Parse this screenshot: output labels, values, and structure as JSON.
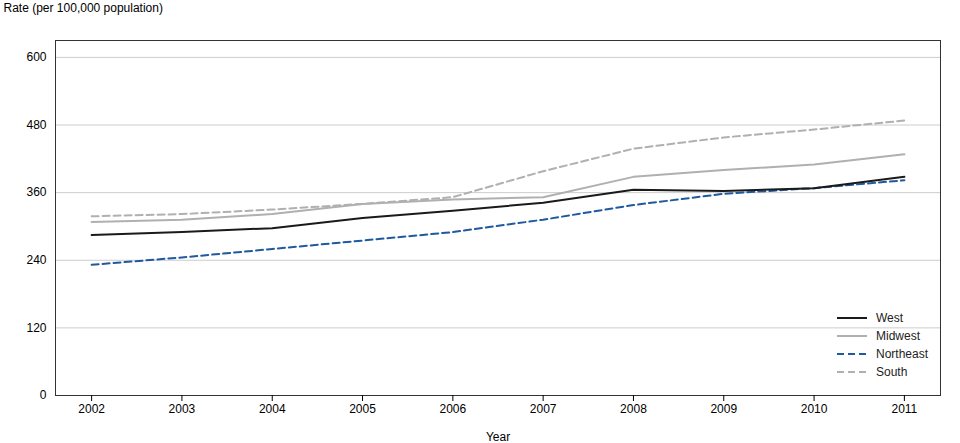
{
  "chart_data": {
    "type": "line",
    "x": [
      2002,
      2003,
      2004,
      2005,
      2006,
      2007,
      2008,
      2009,
      2010,
      2011
    ],
    "xlabel": "Year",
    "ylabel": "Rate (per 100,000 population)",
    "series": [
      {
        "name": "West",
        "color": "#1a1a1a",
        "line_style": "solid",
        "values": [
          285,
          290,
          297,
          315,
          328,
          342,
          365,
          363,
          368,
          388
        ]
      },
      {
        "name": "Midwest",
        "color": "#b0b0b0",
        "line_style": "solid",
        "values": [
          308,
          312,
          322,
          340,
          348,
          352,
          388,
          400,
          410,
          428
        ]
      },
      {
        "name": "Northeast",
        "color": "#1f5a9e",
        "line_style": "dashed",
        "values": [
          232,
          245,
          260,
          275,
          290,
          312,
          338,
          358,
          368,
          382
        ]
      },
      {
        "name": "South",
        "color": "#b0b0b0",
        "line_style": "dashed",
        "values": [
          318,
          322,
          330,
          340,
          352,
          398,
          438,
          458,
          472,
          488
        ]
      }
    ],
    "xlim": [
      2001.6,
      2011.4
    ],
    "xticks": [
      2002,
      2003,
      2004,
      2005,
      2006,
      2007,
      2008,
      2009,
      2010,
      2011
    ],
    "ylim": [
      0,
      630
    ],
    "yticks": [
      0,
      120,
      240,
      360,
      480,
      600
    ],
    "grid": true,
    "legend": "lower right"
  }
}
